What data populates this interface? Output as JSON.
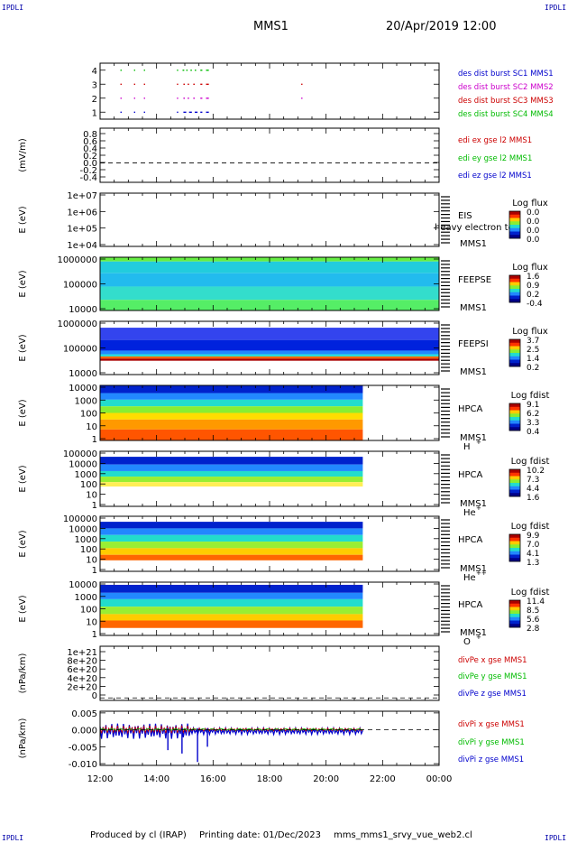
{
  "header": {
    "mission": "MMS1",
    "datetime": "20/Apr/2019 12:00",
    "corner_tl": "IPDLI",
    "corner_tr": "IPDLI",
    "corner_bl": "IPDLI",
    "corner_br": "IPDLI"
  },
  "footer": {
    "produced_by": "Produced by cl (IRAP)",
    "printing_date": "Printing date: 01/Dec/2023",
    "file": "mms_mms1_srvy_vue_web2.cl"
  },
  "xaxis": {
    "ticks": [
      "12:00",
      "14:00",
      "16:00",
      "18:00",
      "20:00",
      "22:00",
      "00:00"
    ],
    "range_hours": [
      12,
      24
    ]
  },
  "chart_data": [
    {
      "type": "scatter",
      "panel": "burst",
      "yticks": [
        "4",
        "3",
        "2",
        "1"
      ],
      "ylim": [
        0.5,
        4.5
      ],
      "legend": [
        {
          "text": "des dist burst SC1 MMS1",
          "color": "#0000cc"
        },
        {
          "text": "des dist burst SC2 MMS2",
          "color": "#cc00cc"
        },
        {
          "text": "des dist burst SC3 MMS3",
          "color": "#cc0000"
        },
        {
          "text": "des dist burst SC4 MMS4",
          "color": "#00bb00"
        }
      ],
      "series": [
        {
          "level": 4,
          "color": "#00bb00",
          "intervals": [
            [
              12.72,
              12.75
            ],
            [
              13.2,
              13.23
            ],
            [
              13.55,
              13.58
            ],
            [
              14.72,
              14.76
            ],
            [
              14.92,
              14.98
            ],
            [
              15.05,
              15.1
            ],
            [
              15.2,
              15.25
            ],
            [
              15.35,
              15.4
            ],
            [
              15.55,
              15.62
            ],
            [
              15.75,
              15.85
            ]
          ]
        },
        {
          "level": 3,
          "color": "#cc0000",
          "intervals": [
            [
              12.72,
              12.75
            ],
            [
              13.2,
              13.23
            ],
            [
              13.55,
              13.58
            ],
            [
              14.72,
              14.76
            ],
            [
              14.95,
              15.0
            ],
            [
              15.1,
              15.15
            ],
            [
              15.3,
              15.35
            ],
            [
              15.55,
              15.62
            ],
            [
              15.75,
              15.85
            ],
            [
              19.12,
              19.14
            ]
          ]
        },
        {
          "level": 2,
          "color": "#cc00cc",
          "intervals": [
            [
              12.72,
              12.75
            ],
            [
              13.2,
              13.23
            ],
            [
              13.55,
              13.58
            ],
            [
              14.72,
              14.76
            ],
            [
              14.95,
              15.0
            ],
            [
              15.1,
              15.15
            ],
            [
              15.3,
              15.35
            ],
            [
              15.55,
              15.62
            ],
            [
              15.75,
              15.85
            ],
            [
              19.12,
              19.14
            ]
          ]
        },
        {
          "level": 1,
          "color": "#0000cc",
          "intervals": [
            [
              12.72,
              12.75
            ],
            [
              13.2,
              13.23
            ],
            [
              13.55,
              13.58
            ],
            [
              14.72,
              14.76
            ],
            [
              14.95,
              15.05
            ],
            [
              15.15,
              15.25
            ],
            [
              15.35,
              15.45
            ],
            [
              15.55,
              15.62
            ],
            [
              15.75,
              15.85
            ]
          ]
        }
      ]
    },
    {
      "type": "line",
      "panel": "edi",
      "ylabel": "(mV/m)",
      "yticks": [
        "0.8",
        "0.6",
        "0.4",
        "0.2",
        "0.0",
        "-0.2",
        "-0.4"
      ],
      "ylim": [
        -0.5,
        0.9
      ],
      "zero_line": true,
      "legend": [
        {
          "text": "edi ex gse l2 MMS1",
          "color": "#cc0000"
        },
        {
          "text": "edi ey gse l2 MMS1",
          "color": "#00bb00"
        },
        {
          "text": "edi ez gse l2 MMS1",
          "color": "#0000cc"
        }
      ]
    },
    {
      "type": "heatmap",
      "panel": "eis",
      "ylabel": "E (eV)",
      "yticks": [
        "1e+07",
        "1e+06",
        "1e+05",
        "1e+04"
      ],
      "labels": [
        "EIS",
        "MMS1"
      ],
      "overlay_text": "heavy electron to",
      "cbar_title": "Log flux",
      "cbar_ticks": [
        "0.0",
        "0.0",
        "0.0",
        "0.0"
      ],
      "empty": true
    },
    {
      "type": "heatmap",
      "panel": "feepse",
      "ylabel": "E (eV)",
      "yticks": [
        "1000000",
        "100000",
        "10000"
      ],
      "labels": [
        "FEEPSE",
        "MMS1"
      ],
      "cbar_title": "Log flux",
      "cbar_ticks": [
        "1.6",
        "0.9",
        "0.2",
        "-0.4"
      ],
      "coverage_hours": [
        12,
        24
      ],
      "bands": [
        {
          "from": 0.0,
          "to": 0.08,
          "color": "#66ee44"
        },
        {
          "from": 0.08,
          "to": 0.3,
          "color": "#22ccdd"
        },
        {
          "from": 0.3,
          "to": 0.55,
          "color": "#22bbee"
        },
        {
          "from": 0.55,
          "to": 0.8,
          "color": "#33ddcc"
        },
        {
          "from": 0.8,
          "to": 1.0,
          "color": "#55ee66"
        }
      ]
    },
    {
      "type": "heatmap",
      "panel": "feepsi",
      "ylabel": "E (eV)",
      "yticks": [
        "1000000",
        "100000",
        "10000"
      ],
      "labels": [
        "FEEPSI",
        "MMS1"
      ],
      "cbar_title": "Log flux",
      "cbar_ticks": [
        "3.7",
        "2.5",
        "1.4",
        "0.2"
      ],
      "coverage_hours": [
        12,
        24
      ],
      "bands": [
        {
          "from": 0.12,
          "to": 0.35,
          "color": "#3344ee"
        },
        {
          "from": 0.35,
          "to": 0.55,
          "color": "#0022dd"
        },
        {
          "from": 0.55,
          "to": 0.62,
          "color": "#2288ff"
        },
        {
          "from": 0.62,
          "to": 0.66,
          "color": "#22dddd"
        },
        {
          "from": 0.66,
          "to": 0.7,
          "color": "#ff6600"
        },
        {
          "from": 0.7,
          "to": 0.74,
          "color": "#aa0000"
        }
      ]
    },
    {
      "type": "heatmap",
      "panel": "hpca-h",
      "ylabel": "E (eV)",
      "yticks": [
        "10000",
        "1000",
        "100",
        "10",
        "1"
      ],
      "labels": [
        "HPCA",
        "MMS1",
        "H",
        "+"
      ],
      "cbar_title": "Log fdist",
      "cbar_ticks": [
        "9.1",
        "6.2",
        "3.3",
        "0.4"
      ],
      "coverage_hours": [
        12,
        21.3
      ],
      "bands": [
        {
          "from": 0.0,
          "to": 0.14,
          "color": "#0022cc"
        },
        {
          "from": 0.14,
          "to": 0.26,
          "color": "#2288ff"
        },
        {
          "from": 0.26,
          "to": 0.38,
          "color": "#22ddcc"
        },
        {
          "from": 0.38,
          "to": 0.5,
          "color": "#88ee33"
        },
        {
          "from": 0.5,
          "to": 0.62,
          "color": "#ffdd00"
        },
        {
          "from": 0.62,
          "to": 0.8,
          "color": "#ff9900"
        },
        {
          "from": 0.8,
          "to": 1.0,
          "color": "#ff5500"
        }
      ]
    },
    {
      "type": "heatmap",
      "panel": "hpca-he",
      "ylabel": "E (eV)",
      "yticks": [
        "100000",
        "10000",
        "1000",
        "100",
        "10",
        "1"
      ],
      "labels": [
        "HPCA",
        "MMS1",
        "He",
        "+"
      ],
      "cbar_title": "Log fdist",
      "cbar_ticks": [
        "10.2",
        "7.3",
        "4.4",
        "1.6"
      ],
      "coverage_hours": [
        12,
        21.3
      ],
      "bands": [
        {
          "from": 0.1,
          "to": 0.24,
          "color": "#0022cc"
        },
        {
          "from": 0.24,
          "to": 0.36,
          "color": "#2288ff"
        },
        {
          "from": 0.36,
          "to": 0.46,
          "color": "#22ddcc"
        },
        {
          "from": 0.46,
          "to": 0.56,
          "color": "#99ee33"
        },
        {
          "from": 0.56,
          "to": 0.64,
          "color": "#ffee55"
        }
      ]
    },
    {
      "type": "heatmap",
      "panel": "hpca-hepp",
      "ylabel": "E (eV)",
      "yticks": [
        "100000",
        "10000",
        "1000",
        "100",
        "10",
        "1"
      ],
      "labels": [
        "HPCA",
        "MMS1",
        "He",
        "++"
      ],
      "cbar_title": "Log fdist",
      "cbar_ticks": [
        "9.9",
        "7.0",
        "4.1",
        "1.3"
      ],
      "coverage_hours": [
        12,
        21.3
      ],
      "bands": [
        {
          "from": 0.1,
          "to": 0.22,
          "color": "#0022cc"
        },
        {
          "from": 0.22,
          "to": 0.34,
          "color": "#2288ff"
        },
        {
          "from": 0.34,
          "to": 0.46,
          "color": "#22ddcc"
        },
        {
          "from": 0.46,
          "to": 0.58,
          "color": "#99ee33"
        },
        {
          "from": 0.58,
          "to": 0.7,
          "color": "#ffcc00"
        },
        {
          "from": 0.7,
          "to": 0.8,
          "color": "#ff6600"
        }
      ]
    },
    {
      "type": "heatmap",
      "panel": "hpca-o",
      "ylabel": "E (eV)",
      "yticks": [
        "10000",
        "1000",
        "100",
        "10",
        "1"
      ],
      "labels": [
        "HPCA",
        "MMS1",
        "O",
        "+"
      ],
      "cbar_title": "Log fdist",
      "cbar_ticks": [
        "11.4",
        "8.5",
        "5.6",
        "2.8"
      ],
      "coverage_hours": [
        12,
        21.3
      ],
      "bands": [
        {
          "from": 0.05,
          "to": 0.2,
          "color": "#0022cc"
        },
        {
          "from": 0.2,
          "to": 0.32,
          "color": "#2288ff"
        },
        {
          "from": 0.32,
          "to": 0.46,
          "color": "#22ddcc"
        },
        {
          "from": 0.46,
          "to": 0.6,
          "color": "#99ee33"
        },
        {
          "from": 0.6,
          "to": 0.72,
          "color": "#ffcc00"
        },
        {
          "from": 0.72,
          "to": 0.86,
          "color": "#ff6600"
        }
      ]
    },
    {
      "type": "line",
      "panel": "divpe",
      "ylabel": "(nPa/km)",
      "yticks": [
        "1e+21",
        "8e+20",
        "6e+20",
        "4e+20",
        "2e+20",
        "0"
      ],
      "ylim": [
        -0.5,
        10.5
      ],
      "zero_line": true,
      "legend": [
        {
          "text": "divPe x gse MMS1",
          "color": "#cc0000"
        },
        {
          "text": "divPe y gse MMS1",
          "color": "#00bb00"
        },
        {
          "text": "divPe z gse MMS1",
          "color": "#0000cc"
        }
      ]
    },
    {
      "type": "line",
      "panel": "divpi",
      "ylabel": "(nPa/km)",
      "yticks": [
        "0.005",
        "0.000",
        "-0.005",
        "-0.010"
      ],
      "ytick_values": [
        0.005,
        0.0,
        -0.005,
        -0.01
      ],
      "ylim": [
        -0.0105,
        0.0055
      ],
      "zero_line": true,
      "coverage_hours": [
        12,
        21.3
      ],
      "legend": [
        {
          "text": "divPi x gse MMS1",
          "color": "#cc0000"
        },
        {
          "text": "divPi y gse MMS1",
          "color": "#00bb00"
        },
        {
          "text": "divPi z gse MMS1",
          "color": "#0000cc"
        }
      ]
    }
  ]
}
